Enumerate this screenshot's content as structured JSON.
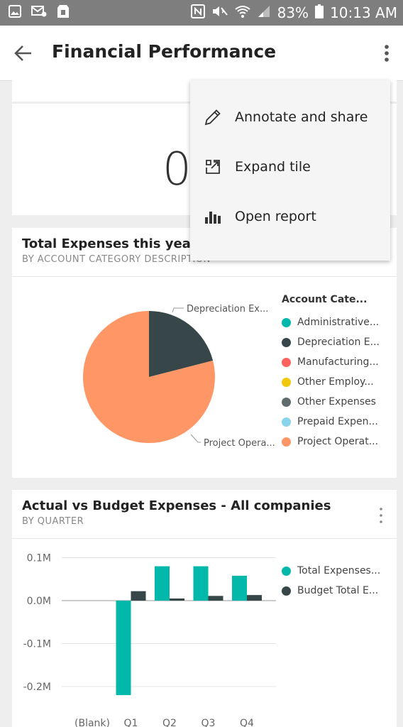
{
  "status_bar": {
    "battery": "83%",
    "time": "10:13 AM"
  },
  "header": {
    "title": "Financial Performance"
  },
  "kpi_tile": {
    "value": "0"
  },
  "menu": {
    "items": [
      {
        "label": "Annotate and share",
        "icon": "pencil-icon"
      },
      {
        "label": "Expand tile",
        "icon": "expand-icon"
      },
      {
        "label": "Open report",
        "icon": "bar-chart-icon"
      }
    ]
  },
  "pie_tile": {
    "title": "Total Expenses this year",
    "subtitle": "BY ACCOUNT CATEGORY DESCRIPTION",
    "legend_title": "Account Cate...",
    "legend": [
      {
        "label": "Administrative...",
        "color": "#01B8AA"
      },
      {
        "label": "Depreciation E...",
        "color": "#374649"
      },
      {
        "label": "Manufacturing...",
        "color": "#FD625E"
      },
      {
        "label": "Other Employ...",
        "color": "#F2C80F"
      },
      {
        "label": "Other Expenses",
        "color": "#5F6B6D"
      },
      {
        "label": "Prepaid Expen...",
        "color": "#8AD4EB"
      },
      {
        "label": "Project Operat...",
        "color": "#FE9666"
      }
    ],
    "slice_labels": [
      "Depreciation Ex...",
      "Project Opera..."
    ]
  },
  "bar_tile": {
    "title": "Actual vs Budget Expenses - All companies",
    "subtitle": "BY QUARTER",
    "legend": [
      {
        "label": "Total Expenses...",
        "color": "#01B8AA"
      },
      {
        "label": "Budget Total E...",
        "color": "#374649"
      }
    ]
  },
  "chart_data": [
    {
      "type": "pie",
      "title": "Total Expenses this year",
      "legend_title": "Account Cate...",
      "categories": [
        "Depreciation Ex...",
        "Project Opera..."
      ],
      "values": [
        21,
        79
      ],
      "colors": [
        "#374649",
        "#FE9666"
      ]
    },
    {
      "type": "bar",
      "title": "Actual vs Budget Expenses - All companies",
      "categories": [
        "(Blank)",
        "Q1",
        "Q2",
        "Q3",
        "Q4"
      ],
      "series": [
        {
          "name": "Total Expenses...",
          "values": [
            0,
            -0.22,
            0.08,
            0.08,
            0.058
          ],
          "color": "#01B8AA"
        },
        {
          "name": "Budget Total E...",
          "values": [
            0,
            0.022,
            0.005,
            0.011,
            0.013
          ],
          "color": "#374649"
        }
      ],
      "y_ticks": [
        "0.1M",
        "0.0M",
        "-0.1M",
        "-0.2M"
      ],
      "ylim": [
        -0.25,
        0.12
      ]
    }
  ]
}
